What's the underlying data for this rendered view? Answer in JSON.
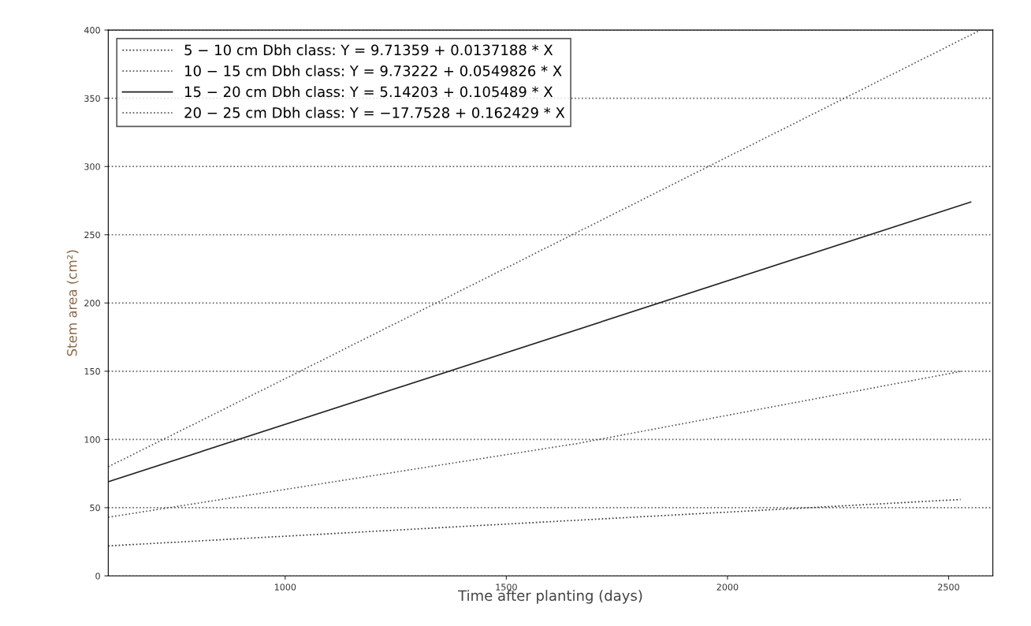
{
  "chart_data": {
    "type": "line",
    "xlabel": "Time after planting (days)",
    "ylabel": "Stem area (cm²)",
    "xlim": [
      600,
      2600
    ],
    "xticks": [
      1000,
      1500,
      2000,
      2500
    ],
    "ylim": [
      0,
      400
    ],
    "yticks": [
      0,
      50,
      100,
      150,
      200,
      250,
      300,
      350,
      400
    ],
    "grid": "y",
    "legend": "top left",
    "marker": "none",
    "series": [
      {
        "name": "5 − 10 cm Dbh class: Y = 9.71359 + 0.0137188 * X",
        "color": "#333333",
        "line_style": "dotted",
        "x": [
          600,
          1500,
          2527
        ],
        "values": [
          22,
          38,
          56
        ]
      },
      {
        "name": "10 − 15 cm Dbh class: Y = 9.73222 + 0.0549826 * X",
        "color": "#555555",
        "line_style": "dotted",
        "x": [
          600,
          1660,
          2530
        ],
        "values": [
          43,
          97,
          150
        ]
      },
      {
        "name": "15 − 20 cm Dbh class: Y = 5.14203 + 0.105489 * X",
        "color": "#222222",
        "line_style": "solid",
        "x": [
          600,
          2550
        ],
        "values": [
          69,
          274
        ]
      },
      {
        "name": "20 − 25 cm Dbh class: Y = −17.7528 + 0.162429 * X",
        "color": "#555555",
        "line_style": "dotted",
        "x": [
          600,
          1034,
          2572
        ],
        "values": [
          80,
          150,
          400
        ]
      }
    ]
  }
}
